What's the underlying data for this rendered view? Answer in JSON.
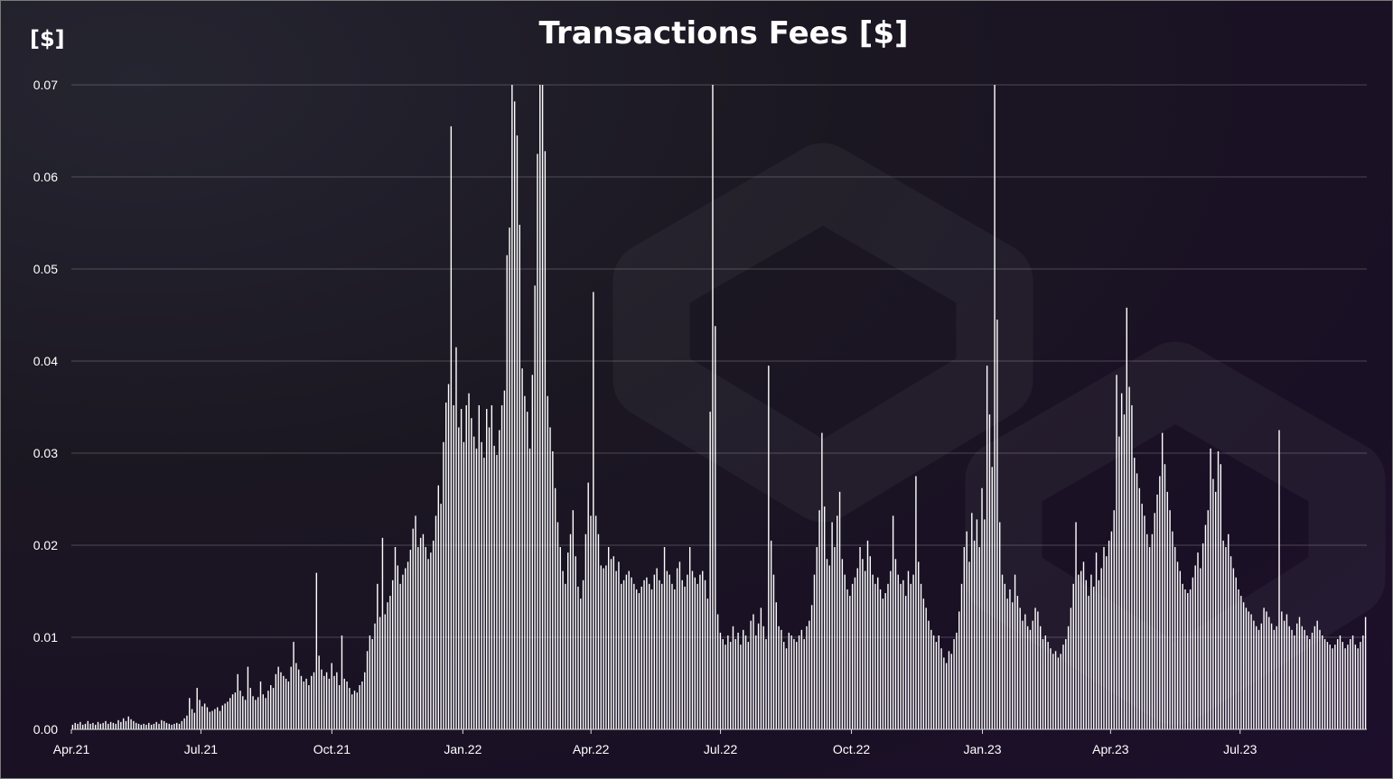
{
  "chart_data": {
    "type": "bar",
    "title": "Transactions Fees [$]",
    "ylabel": "[$]",
    "xlabel": "",
    "ylim": [
      0,
      0.07
    ],
    "grid": true,
    "legend": "none",
    "y_ticks": [
      "0.00",
      "0.01",
      "0.02",
      "0.03",
      "0.04",
      "0.05",
      "0.06",
      "0.07"
    ],
    "x_ticks": [
      "Apr.21",
      "Jul.21",
      "Oct.21",
      "Jan.22",
      "Apr.22",
      "Jul.22",
      "Oct.22",
      "Jan.23",
      "Apr.23",
      "Jul.23"
    ],
    "x_range": [
      "2021-04-01",
      "2023-09-28"
    ],
    "bar_color": "#ffffff",
    "series": [
      {
        "values": [
          0.0005,
          0.0007,
          0.0006,
          0.0008,
          0.0005,
          0.0006,
          0.0009,
          0.0006,
          0.0007,
          0.0005,
          0.0008,
          0.0006,
          0.0007,
          0.0009,
          0.0006,
          0.0008,
          0.0007,
          0.0006,
          0.001,
          0.0008,
          0.0012,
          0.0009,
          0.0014,
          0.0011,
          0.0009,
          0.0007,
          0.0006,
          0.0005,
          0.0006,
          0.0005,
          0.0007,
          0.0005,
          0.0006,
          0.0008,
          0.0006,
          0.001,
          0.0009,
          0.0007,
          0.0006,
          0.0005,
          0.0006,
          0.0007,
          0.0006,
          0.0009,
          0.0012,
          0.0015,
          0.0034,
          0.0022,
          0.0018,
          0.0045,
          0.0032,
          0.0025,
          0.0028,
          0.0024,
          0.0019,
          0.002,
          0.0022,
          0.0024,
          0.002,
          0.0026,
          0.0028,
          0.003,
          0.0034,
          0.0038,
          0.004,
          0.006,
          0.0042,
          0.0036,
          0.0032,
          0.0068,
          0.0045,
          0.0036,
          0.0032,
          0.0035,
          0.0052,
          0.0038,
          0.0034,
          0.0042,
          0.0048,
          0.0045,
          0.006,
          0.0068,
          0.0062,
          0.0058,
          0.0055,
          0.0052,
          0.0068,
          0.0095,
          0.0072,
          0.0065,
          0.0058,
          0.0052,
          0.0055,
          0.0048,
          0.0058,
          0.0062,
          0.017,
          0.008,
          0.0065,
          0.0058,
          0.0062,
          0.0055,
          0.0072,
          0.0058,
          0.0062,
          0.0048,
          0.0102,
          0.0055,
          0.0052,
          0.0045,
          0.0038,
          0.0042,
          0.004,
          0.0048,
          0.0052,
          0.0062,
          0.0085,
          0.0102,
          0.0098,
          0.0115,
          0.0158,
          0.0122,
          0.0208,
          0.0125,
          0.0138,
          0.0145,
          0.0162,
          0.0198,
          0.0178,
          0.0158,
          0.0168,
          0.0175,
          0.0182,
          0.0195,
          0.0218,
          0.0232,
          0.0198,
          0.0208,
          0.0212,
          0.0198,
          0.0185,
          0.0192,
          0.0205,
          0.0232,
          0.0265,
          0.0245,
          0.0312,
          0.0355,
          0.0375,
          0.0655,
          0.0352,
          0.0415,
          0.0328,
          0.0348,
          0.0312,
          0.0352,
          0.0365,
          0.0338,
          0.0318,
          0.0305,
          0.0352,
          0.0312,
          0.0295,
          0.0348,
          0.0328,
          0.0352,
          0.0308,
          0.0298,
          0.0325,
          0.0352,
          0.0368,
          0.0515,
          0.0545,
          0.0738,
          0.0682,
          0.0645,
          0.0548,
          0.0392,
          0.0362,
          0.0345,
          0.0305,
          0.0385,
          0.0482,
          0.0625,
          0.0735,
          0.0722,
          0.0628,
          0.0362,
          0.0328,
          0.0302,
          0.0262,
          0.0225,
          0.0198,
          0.0172,
          0.0158,
          0.0192,
          0.0212,
          0.0238,
          0.0188,
          0.0155,
          0.0142,
          0.0162,
          0.0212,
          0.0268,
          0.0232,
          0.0475,
          0.0232,
          0.0212,
          0.0178,
          0.0175,
          0.0178,
          0.0198,
          0.0185,
          0.0188,
          0.0172,
          0.0182,
          0.0158,
          0.0162,
          0.0168,
          0.0172,
          0.0165,
          0.0158,
          0.0152,
          0.0148,
          0.0155,
          0.0162,
          0.0165,
          0.0158,
          0.0152,
          0.0168,
          0.0175,
          0.0162,
          0.0158,
          0.0198,
          0.0172,
          0.0168,
          0.0158,
          0.0152,
          0.0175,
          0.0182,
          0.0162,
          0.0155,
          0.0168,
          0.0198,
          0.0172,
          0.0165,
          0.0158,
          0.0168,
          0.0172,
          0.0162,
          0.0142,
          0.0345,
          0.0732,
          0.0438,
          0.0125,
          0.0105,
          0.0098,
          0.0092,
          0.0102,
          0.0095,
          0.0112,
          0.0098,
          0.0105,
          0.0092,
          0.0108,
          0.0102,
          0.0095,
          0.0118,
          0.0125,
          0.0102,
          0.0115,
          0.0132,
          0.0112,
          0.0098,
          0.0395,
          0.0205,
          0.0168,
          0.0138,
          0.0112,
          0.0108,
          0.0095,
          0.0088,
          0.0105,
          0.0102,
          0.0098,
          0.0095,
          0.0102,
          0.0108,
          0.0098,
          0.0112,
          0.0118,
          0.0135,
          0.0168,
          0.0198,
          0.0238,
          0.0322,
          0.0242,
          0.0185,
          0.0178,
          0.0225,
          0.0198,
          0.0232,
          0.0258,
          0.0185,
          0.0168,
          0.0152,
          0.0145,
          0.0158,
          0.0165,
          0.0175,
          0.0198,
          0.0185,
          0.0172,
          0.0205,
          0.0188,
          0.0168,
          0.0158,
          0.0165,
          0.0152,
          0.0142,
          0.0148,
          0.0158,
          0.0172,
          0.0232,
          0.0185,
          0.0168,
          0.0158,
          0.0162,
          0.0145,
          0.0172,
          0.0158,
          0.0168,
          0.0275,
          0.0182,
          0.0158,
          0.0142,
          0.0132,
          0.0118,
          0.0108,
          0.0102,
          0.0095,
          0.0102,
          0.0088,
          0.0078,
          0.0072,
          0.0085,
          0.0082,
          0.0098,
          0.0105,
          0.0128,
          0.0158,
          0.0198,
          0.0215,
          0.0182,
          0.0235,
          0.0205,
          0.0228,
          0.0198,
          0.0262,
          0.0228,
          0.0395,
          0.0342,
          0.0285,
          0.0702,
          0.0445,
          0.0225,
          0.0168,
          0.0158,
          0.0142,
          0.0152,
          0.0138,
          0.0168,
          0.0145,
          0.0132,
          0.0118,
          0.0125,
          0.0112,
          0.0108,
          0.0118,
          0.0132,
          0.0128,
          0.0112,
          0.0098,
          0.0102,
          0.0095,
          0.0088,
          0.0082,
          0.0085,
          0.0078,
          0.0082,
          0.0092,
          0.0098,
          0.0112,
          0.0132,
          0.0158,
          0.0225,
          0.0168,
          0.0172,
          0.0182,
          0.0162,
          0.0145,
          0.0168,
          0.0155,
          0.0192,
          0.0162,
          0.0175,
          0.0198,
          0.0188,
          0.0205,
          0.0215,
          0.0238,
          0.0385,
          0.0318,
          0.0365,
          0.0342,
          0.0458,
          0.0372,
          0.0352,
          0.0295,
          0.0278,
          0.0262,
          0.0245,
          0.0232,
          0.0212,
          0.0198,
          0.0212,
          0.0235,
          0.0255,
          0.0275,
          0.0322,
          0.0288,
          0.0258,
          0.0238,
          0.0215,
          0.0198,
          0.0182,
          0.0172,
          0.0158,
          0.0152,
          0.0148,
          0.0152,
          0.0165,
          0.0178,
          0.0192,
          0.0175,
          0.0202,
          0.0222,
          0.0238,
          0.0305,
          0.0272,
          0.0258,
          0.0302,
          0.0288,
          0.0205,
          0.0198,
          0.0212,
          0.0188,
          0.0175,
          0.0165,
          0.0152,
          0.0145,
          0.0138,
          0.0132,
          0.0128,
          0.0125,
          0.0118,
          0.0112,
          0.0108,
          0.0115,
          0.0132,
          0.0128,
          0.0122,
          0.0115,
          0.0108,
          0.0112,
          0.0325,
          0.0128,
          0.0118,
          0.0125,
          0.0112,
          0.0108,
          0.0102,
          0.0115,
          0.0122,
          0.0112,
          0.0108,
          0.0102,
          0.0098,
          0.0105,
          0.0112,
          0.0118,
          0.0108,
          0.0102,
          0.0098,
          0.0095,
          0.0092,
          0.0088,
          0.0092,
          0.0098,
          0.0102,
          0.0095,
          0.0088,
          0.0092,
          0.0098,
          0.0102,
          0.0092,
          0.0088,
          0.0095,
          0.0102,
          0.0122
        ]
      }
    ]
  }
}
